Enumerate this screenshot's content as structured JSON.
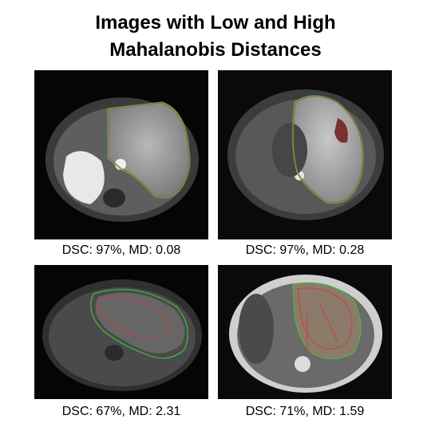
{
  "title": {
    "line1": "Images with Low and High",
    "line2": "Mahalanobis Distances"
  },
  "panels": [
    {
      "caption": "DSC: 97%, MD: 0.08"
    },
    {
      "caption": "DSC: 97%, MD: 0.28"
    },
    {
      "caption": "DSC: 67%, MD: 2.31"
    },
    {
      "caption": "DSC: 71%, MD: 1.59"
    }
  ],
  "colors": {
    "contour_green": "#3fbf3f",
    "contour_red": "#d23a3a"
  }
}
